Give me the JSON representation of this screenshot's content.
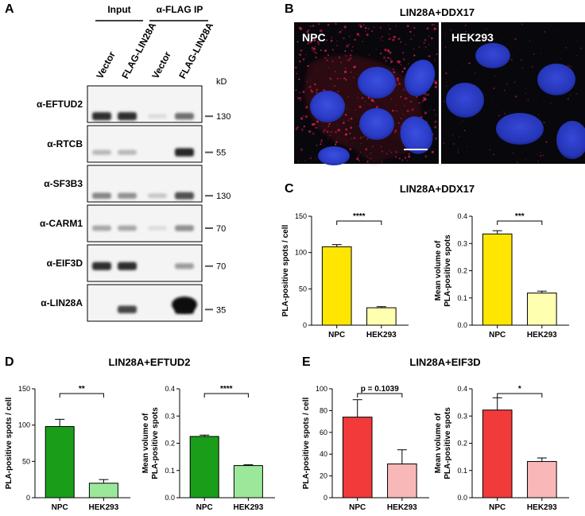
{
  "panelA": {
    "letter": "A",
    "groups": [
      "Input",
      "α-FLAG IP"
    ],
    "lanes": [
      "Vector",
      "FLAG-LIN28A",
      "Vector",
      "FLAG-LIN28A"
    ],
    "kd_header": "kD",
    "blots": [
      {
        "antibody": "α-EFTUD2",
        "kd": "130",
        "bands": [
          0.85,
          0.85,
          0.05,
          0.55
        ],
        "top": 0.5
      },
      {
        "antibody": "α-RTCB",
        "kd": "55",
        "bands": [
          0.22,
          0.22,
          0.0,
          0.9
        ],
        "top": 0.6
      },
      {
        "antibody": "α-SF3B3",
        "kd": "130",
        "bands": [
          0.45,
          0.4,
          0.15,
          0.7
        ],
        "top": 0.5
      },
      {
        "antibody": "α-CARM1",
        "kd": "70",
        "bands": [
          0.3,
          0.3,
          0.05,
          0.4
        ],
        "top": 0.7
      },
      {
        "antibody": "α-EIF3D",
        "kd": "70",
        "bands": [
          0.85,
          0.85,
          0.0,
          0.35
        ],
        "top": 0.75
      },
      {
        "antibody": "α-LIN28A",
        "kd": "35",
        "bands": [
          0.0,
          0.75,
          0.0,
          1.0
        ],
        "top": 0.65
      }
    ]
  },
  "panelB": {
    "letter": "B",
    "title": "LIN28A+DDX17",
    "left_label": "NPC",
    "right_label": "HEK293"
  },
  "charts": [
    {
      "letter": "C",
      "title": "LIN28A+DDX17",
      "ylabel": "PLA-positive spots / cell",
      "categories": [
        "NPC",
        "HEK293"
      ],
      "values": [
        108,
        24
      ],
      "errors": [
        3,
        1.5
      ],
      "ylim": [
        0,
        150
      ],
      "yticks": [
        0,
        50,
        100,
        150
      ],
      "significance": "****",
      "colors": [
        "#ffe600",
        "#ffffb0"
      ]
    },
    {
      "ylabel": "Mean volume of\nPLA-positive spots",
      "categories": [
        "NPC",
        "HEK293"
      ],
      "values": [
        0.335,
        0.118
      ],
      "errors": [
        0.012,
        0.007
      ],
      "ylim": [
        0,
        0.4
      ],
      "yticks": [
        "0.0",
        "0.1",
        "0.2",
        "0.3",
        "0.4"
      ],
      "significance": "***",
      "colors": [
        "#ffe600",
        "#ffffb0"
      ]
    },
    {
      "letter": "D",
      "title": "LIN28A+EFTUD2",
      "ylabel": "PLA-positive spots / cell",
      "categories": [
        "NPC",
        "HEK293"
      ],
      "values": [
        98,
        20
      ],
      "errors": [
        10,
        5
      ],
      "ylim": [
        0,
        150
      ],
      "yticks": [
        0,
        50,
        100,
        150
      ],
      "significance": "**",
      "colors": [
        "#1a9e1a",
        "#9be89b"
      ]
    },
    {
      "ylabel": "Mean volume of\nPLA-positive spots",
      "categories": [
        "NPC",
        "HEK293"
      ],
      "values": [
        0.225,
        0.118
      ],
      "errors": [
        0.005,
        0.003
      ],
      "ylim": [
        0,
        0.4
      ],
      "yticks": [
        "0.0",
        "0.1",
        "0.2",
        "0.3",
        "0.4"
      ],
      "significance": "****",
      "colors": [
        "#1a9e1a",
        "#9be89b"
      ]
    },
    {
      "letter": "E",
      "title": "LIN28A+EIF3D",
      "ylabel": "PLA-positive spots / cell",
      "categories": [
        "NPC",
        "HEK293"
      ],
      "values": [
        74,
        31
      ],
      "errors": [
        16,
        13
      ],
      "ylim": [
        0,
        100
      ],
      "yticks": [
        0,
        20,
        40,
        60,
        80,
        100
      ],
      "significance": "p = 0.1039",
      "colors": [
        "#f23a3a",
        "#f9b8b8"
      ]
    },
    {
      "ylabel": "Mean volume of\nPLA-positive spots",
      "categories": [
        "NPC",
        "HEK293"
      ],
      "values": [
        0.322,
        0.133
      ],
      "errors": [
        0.045,
        0.013
      ],
      "ylim": [
        0,
        0.4
      ],
      "yticks": [
        "0.0",
        "0.1",
        "0.2",
        "0.3",
        "0.4"
      ],
      "significance": "*",
      "colors": [
        "#f23a3a",
        "#f9b8b8"
      ]
    }
  ]
}
